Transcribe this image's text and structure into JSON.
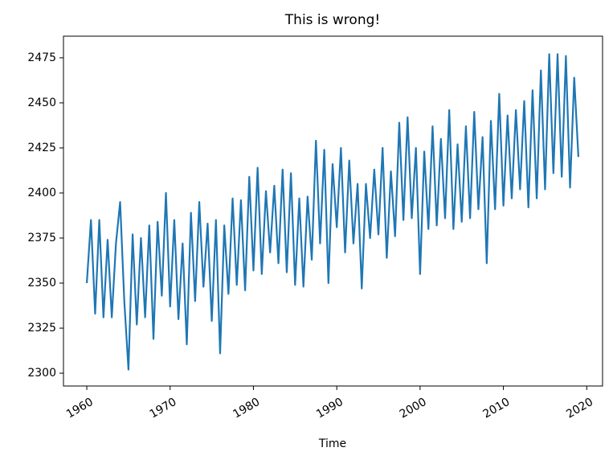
{
  "chart_data": {
    "type": "line",
    "title": "This is wrong!",
    "xlabel": "Time",
    "color": "#1f77b4",
    "x": [
      1960,
      1960.5,
      1961,
      1961.5,
      1962,
      1962.5,
      1963,
      1963.5,
      1964,
      1964.5,
      1965,
      1965.5,
      1966,
      1966.5,
      1967,
      1967.5,
      1968,
      1968.5,
      1969,
      1969.5,
      1970,
      1970.5,
      1971,
      1971.5,
      1972,
      1972.5,
      1973,
      1973.5,
      1974,
      1974.5,
      1975,
      1975.5,
      1976,
      1976.5,
      1977,
      1977.5,
      1978,
      1978.5,
      1979,
      1979.5,
      1980,
      1980.5,
      1981,
      1981.5,
      1982,
      1982.5,
      1983,
      1983.5,
      1984,
      1984.5,
      1985,
      1985.5,
      1986,
      1986.5,
      1987,
      1987.5,
      1988,
      1988.5,
      1989,
      1989.5,
      1990,
      1990.5,
      1991,
      1991.5,
      1992,
      1992.5,
      1993,
      1993.5,
      1994,
      1994.5,
      1995,
      1995.5,
      1996,
      1996.5,
      1997,
      1997.5,
      1998,
      1998.5,
      1999,
      1999.5,
      2000,
      2000.5,
      2001,
      2001.5,
      2002,
      2002.5,
      2003,
      2003.5,
      2004,
      2004.5,
      2005,
      2005.5,
      2006,
      2006.5,
      2007,
      2007.5,
      2008,
      2008.5,
      2009,
      2009.5,
      2010,
      2010.5,
      2011,
      2011.5,
      2012,
      2012.5,
      2013,
      2013.5,
      2014,
      2014.5,
      2015,
      2015.5,
      2016,
      2016.5,
      2017,
      2017.5,
      2018,
      2018.5,
      2019
    ],
    "values": [
      2350,
      2385,
      2333,
      2385,
      2331,
      2374,
      2331,
      2372,
      2395,
      2340,
      2302,
      2377,
      2327,
      2375,
      2331,
      2382,
      2319,
      2384,
      2343,
      2400,
      2337,
      2385,
      2330,
      2372,
      2316,
      2389,
      2340,
      2395,
      2348,
      2383,
      2329,
      2385,
      2311,
      2382,
      2344,
      2397,
      2349,
      2396,
      2346,
      2409,
      2357,
      2414,
      2355,
      2401,
      2367,
      2404,
      2361,
      2413,
      2356,
      2411,
      2349,
      2397,
      2348,
      2398,
      2363,
      2429,
      2372,
      2424,
      2350,
      2416,
      2381,
      2425,
      2367,
      2418,
      2372,
      2405,
      2347,
      2405,
      2375,
      2413,
      2377,
      2425,
      2364,
      2412,
      2376,
      2439,
      2385,
      2442,
      2386,
      2425,
      2355,
      2423,
      2380,
      2437,
      2382,
      2430,
      2386,
      2446,
      2380,
      2427,
      2384,
      2437,
      2386,
      2445,
      2391,
      2431,
      2361,
      2440,
      2391,
      2455,
      2393,
      2443,
      2397,
      2446,
      2402,
      2451,
      2392,
      2457,
      2397,
      2468,
      2402,
      2477,
      2411,
      2477,
      2409,
      2476,
      2403,
      2464,
      2420
    ],
    "xlim": [
      1957.2,
      2021.9
    ],
    "xticks": [
      1960,
      1970,
      1980,
      1990,
      2000,
      2010,
      2020
    ],
    "ylim": [
      2292.9,
      2487
    ],
    "yticks": [
      2300,
      2325,
      2350,
      2375,
      2400,
      2425,
      2450,
      2475
    ]
  }
}
